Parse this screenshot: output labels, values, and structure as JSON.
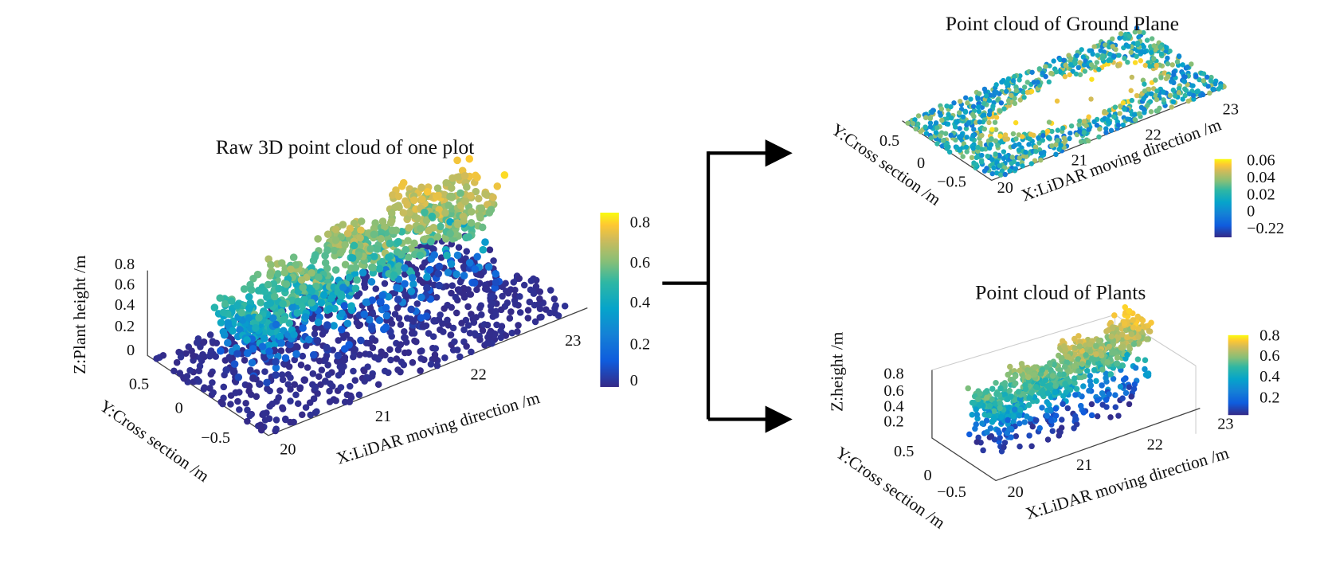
{
  "arrow_label": null,
  "panels": [
    {
      "title": "Raw 3D point cloud of one plot",
      "x_axis_label": "X:LiDAR moving direction /m",
      "y_axis_label": "Y:Cross section /m",
      "z_axis_label": "Z:Plant height /m",
      "x_ticks": [
        "20",
        "21",
        "22",
        "23"
      ],
      "y_ticks": [
        "0.5",
        "0",
        "−0.5"
      ],
      "z_ticks": [
        "0.8",
        "0.6",
        "0.4",
        "0.2",
        "0"
      ],
      "colorbar_ticks": [
        "0.8",
        "0.6",
        "0.4",
        "0.2",
        "0"
      ]
    },
    {
      "title": "Point cloud of Ground Plane",
      "x_axis_label": "X:LiDAR moving direction /m",
      "y_axis_label": "Y:Cross section /m",
      "x_ticks": [
        "20",
        "21",
        "22",
        "23"
      ],
      "y_ticks": [
        "0.5",
        "0",
        "−0.5"
      ],
      "colorbar_ticks": [
        "0.06",
        "0.04",
        "0.02",
        "0",
        "−0.22"
      ]
    },
    {
      "title": "Point cloud of Plants",
      "x_axis_label": "X:LiDAR moving direction /m",
      "y_axis_label": "Y:Cross section /m",
      "z_axis_label": "Z:height /m",
      "x_ticks": [
        "20",
        "21",
        "22",
        "23"
      ],
      "y_ticks": [
        "0.5",
        "0",
        "−0.5"
      ],
      "z_ticks": [
        "0.8",
        "0.6",
        "0.4",
        "0.2"
      ],
      "colorbar_ticks": [
        "0.8",
        "0.6",
        "0.4",
        "0.2"
      ]
    }
  ]
}
